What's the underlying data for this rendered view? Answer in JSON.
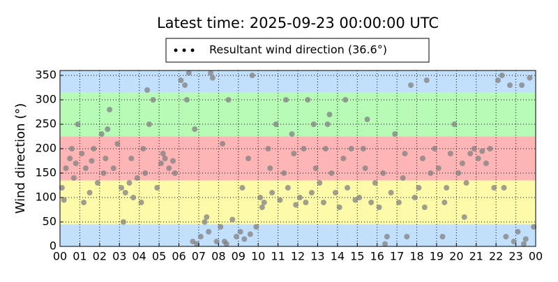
{
  "chart_data": {
    "type": "scatter",
    "title": "Latest time: 2025-09-23 00:00:00 UTC",
    "y_label": "Wind direction (°)",
    "grid": true,
    "bands": [
      {
        "from": 0,
        "to": 45,
        "color": "#c2e0fc"
      },
      {
        "from": 45,
        "to": 135,
        "color": "#fdfbaa"
      },
      {
        "from": 135,
        "to": 225,
        "color": "#fdb5b5"
      },
      {
        "from": 225,
        "to": 315,
        "color": "#b7fbb7"
      },
      {
        "from": 315,
        "to": 360,
        "color": "#c2e0fc"
      }
    ],
    "xlim": [
      0,
      24
    ],
    "xticks": [
      {
        "value": 0,
        "label": "00"
      },
      {
        "value": 1,
        "label": "01"
      },
      {
        "value": 2,
        "label": "02"
      },
      {
        "value": 3,
        "label": "03"
      },
      {
        "value": 4,
        "label": "04"
      },
      {
        "value": 5,
        "label": "05"
      },
      {
        "value": 6,
        "label": "06"
      },
      {
        "value": 7,
        "label": "07"
      },
      {
        "value": 8,
        "label": "08"
      },
      {
        "value": 9,
        "label": "09"
      },
      {
        "value": 10,
        "label": "10"
      },
      {
        "value": 11,
        "label": "11"
      },
      {
        "value": 12,
        "label": "12"
      },
      {
        "value": 13,
        "label": "13"
      },
      {
        "value": 14,
        "label": "14"
      },
      {
        "value": 15,
        "label": "15"
      },
      {
        "value": 16,
        "label": "16"
      },
      {
        "value": 17,
        "label": "17"
      },
      {
        "value": 18,
        "label": "18"
      },
      {
        "value": 19,
        "label": "19"
      },
      {
        "value": 20,
        "label": "20"
      },
      {
        "value": 21,
        "label": "21"
      },
      {
        "value": 22,
        "label": "22"
      },
      {
        "value": 23,
        "label": "23"
      },
      {
        "value": 24,
        "label": "00"
      }
    ],
    "ylim": [
      0,
      360
    ],
    "yticks": [
      0,
      50,
      100,
      150,
      200,
      250,
      300,
      350
    ],
    "series": [
      {
        "name": "Resultant wind direction (36.6°)",
        "color": "#808080",
        "legend_color": "#000000",
        "x": [
          0.1,
          0.3,
          0.5,
          0.7,
          0.9,
          0.2,
          0.6,
          0.8,
          1.1,
          1.3,
          1.5,
          1.7,
          1.9,
          1.2,
          1.6,
          2.1,
          2.3,
          2.5,
          2.7,
          2.9,
          2.4,
          2.2,
          3.1,
          3.3,
          3.5,
          3.7,
          3.9,
          3.2,
          3.6,
          4.1,
          4.3,
          4.5,
          4.7,
          4.9,
          4.4,
          4.2,
          5.1,
          5.3,
          5.5,
          5.7,
          5.2,
          5.8,
          6.1,
          6.3,
          6.5,
          6.7,
          6.9,
          6.4,
          6.8,
          7.1,
          7.3,
          7.5,
          7.7,
          7.9,
          7.4,
          7.6,
          8.1,
          8.3,
          8.5,
          8.7,
          8.9,
          8.4,
          8.2,
          9.1,
          9.3,
          9.5,
          9.7,
          9.9,
          9.2,
          9.6,
          10.1,
          10.3,
          10.5,
          10.7,
          10.9,
          10.2,
          10.6,
          11.1,
          11.3,
          11.5,
          11.7,
          11.9,
          11.4,
          11.8,
          12.1,
          12.3,
          12.5,
          12.7,
          12.9,
          12.4,
          12.8,
          13.1,
          13.3,
          13.5,
          13.7,
          13.9,
          13.4,
          13.6,
          14.1,
          14.3,
          14.5,
          14.7,
          14.9,
          14.4,
          15.1,
          15.3,
          15.5,
          15.7,
          15.9,
          15.4,
          16.1,
          16.3,
          16.5,
          16.7,
          16.9,
          16.4,
          17.1,
          17.3,
          17.5,
          17.7,
          17.9,
          17.4,
          18.1,
          18.3,
          18.5,
          18.7,
          18.9,
          18.4,
          19.1,
          19.3,
          19.5,
          19.7,
          19.9,
          19.4,
          20.1,
          20.3,
          20.5,
          20.7,
          20.9,
          20.4,
          21.1,
          21.3,
          21.5,
          21.7,
          21.9,
          22.1,
          22.3,
          22.5,
          22.7,
          22.9,
          22.4,
          23.1,
          23.3,
          23.5,
          23.7,
          23.9,
          23.4
        ],
        "values": [
          120,
          160,
          180,
          140,
          250,
          95,
          200,
          170,
          190,
          160,
          110,
          200,
          130,
          90,
          175,
          230,
          180,
          280,
          160,
          210,
          240,
          150,
          120,
          110,
          130,
          100,
          140,
          50,
          180,
          90,
          150,
          250,
          300,
          120,
          320,
          200,
          170,
          180,
          160,
          175,
          190,
          150,
          340,
          330,
          355,
          10,
          5,
          300,
          240,
          20,
          50,
          30,
          345,
          10,
          60,
          355,
          40,
          10,
          300,
          55,
          20,
          5,
          210,
          30,
          15,
          180,
          350,
          40,
          120,
          25,
          100,
          90,
          200,
          110,
          250,
          80,
          160,
          95,
          150,
          120,
          230,
          85,
          300,
          190,
          100,
          200,
          300,
          110,
          160,
          90,
          250,
          130,
          90,
          250,
          150,
          110,
          200,
          270,
          80,
          180,
          120,
          200,
          95,
          300,
          100,
          200,
          260,
          90,
          130,
          160,
          80,
          150,
          20,
          110,
          230,
          5,
          90,
          140,
          20,
          330,
          100,
          190,
          120,
          180,
          340,
          150,
          200,
          80,
          160,
          20,
          120,
          190,
          250,
          90,
          150,
          170,
          130,
          190,
          200,
          60,
          180,
          195,
          170,
          200,
          120,
          340,
          350,
          20,
          330,
          10,
          120,
          30,
          330,
          15,
          345,
          40,
          5
        ]
      }
    ]
  }
}
